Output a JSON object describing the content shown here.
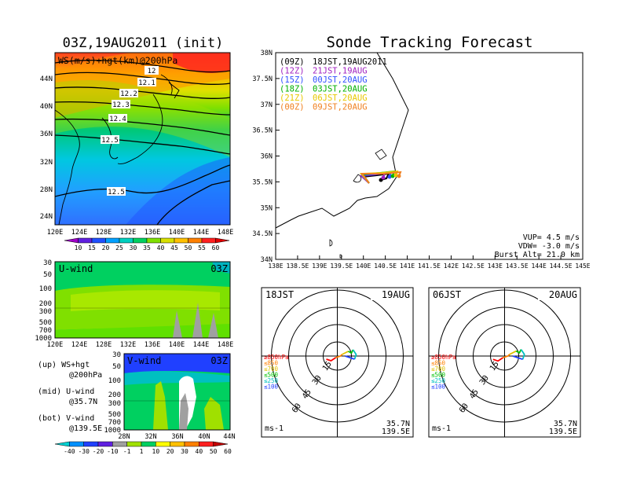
{
  "titles": {
    "left": "03Z,19AUG2011 (init)",
    "right": "Sonde Tracking Forecast"
  },
  "map_200hpa": {
    "label": "WS(m/s)+hgt(km)@200hPa",
    "lat_ticks": [
      "44N",
      "40N",
      "36N",
      "32N",
      "28N",
      "24N"
    ],
    "lon_ticks": [
      "120E",
      "124E",
      "128E",
      "132E",
      "136E",
      "140E",
      "144E",
      "148E"
    ],
    "contour_labels": [
      "12",
      "12.1",
      "12.2",
      "12.3",
      "12.4",
      "12.5",
      "12.5"
    ]
  },
  "ws_colorbar": {
    "labels": [
      "10",
      "15",
      "20",
      "25",
      "30",
      "35",
      "40",
      "45",
      "50",
      "55",
      "60"
    ]
  },
  "u_wind": {
    "label": "U-wind",
    "time": "03Z",
    "p_ticks": [
      "30",
      "50",
      "100",
      "200",
      "300",
      "500",
      "700",
      "1000"
    ],
    "lon_ticks": [
      "120E",
      "124E",
      "128E",
      "132E",
      "136E",
      "140E",
      "144E",
      "148E"
    ]
  },
  "v_wind": {
    "label": "V-wind",
    "time": "03Z",
    "p_ticks": [
      "30",
      "50",
      "100",
      "200",
      "300",
      "500",
      "700",
      "1000"
    ],
    "lat_ticks": [
      "28N",
      "32N",
      "36N",
      "40N",
      "44N"
    ]
  },
  "notes": [
    {
      "l1": "(up) WS+hgt",
      "l2": "@200hPa"
    },
    {
      "l1": "(mid) U-wind",
      "l2": "@35.7N"
    },
    {
      "l1": "(bot) V-wind",
      "l2": "@139.5E"
    }
  ],
  "uv_colorbar": {
    "labels": [
      "-40",
      "-30",
      "-20",
      "-10",
      "-1",
      "1",
      "10",
      "20",
      "30",
      "40",
      "50",
      "60"
    ]
  },
  "track_map": {
    "lat_ticks": [
      "38N",
      "37.5N",
      "37N",
      "36.5N",
      "36N",
      "35.5N",
      "35N",
      "34.5N",
      "34N"
    ],
    "lon_ticks": [
      "138E",
      "138.5E",
      "139E",
      "139.5E",
      "140E",
      "140.5E",
      "141E",
      "141.5E",
      "142E",
      "142.5E",
      "143E",
      "143.5E",
      "144E",
      "144.5E",
      "145E"
    ],
    "legend": [
      {
        "run": "(09Z)",
        "valid": "18JST,19AUG2011",
        "color": "#000000"
      },
      {
        "run": "(12Z)",
        "valid": "21JST,19AUG",
        "color": "#a020c0"
      },
      {
        "run": "(15Z)",
        "valid": "00JST,20AUG",
        "color": "#3050ff"
      },
      {
        "run": "(18Z)",
        "valid": "03JST,20AUG",
        "color": "#00b000"
      },
      {
        "run": "(21Z)",
        "valid": "06JST,20AUG",
        "color": "#e8c800"
      },
      {
        "run": "(00Z)",
        "valid": "09JST,20AUG",
        "color": "#f08020"
      }
    ],
    "params": [
      "VUP= 4.5 m/s",
      "VDW= -3.0 m/s",
      "Burst Alt= 21.0 km"
    ]
  },
  "hodo_left": {
    "time": "18JST",
    "date": "19AUG",
    "loc1": "35.7N",
    "loc2": "139.5E",
    "unit": "ms-1",
    "rings": [
      "15",
      "30",
      "45",
      "60"
    ]
  },
  "hodo_right": {
    "time": "06JST",
    "date": "20AUG",
    "loc1": "35.7N",
    "loc2": "139.5E",
    "unit": "ms-1",
    "rings": [
      "15",
      "30",
      "45",
      "60"
    ]
  },
  "hodo_levels": [
    {
      "label": "≥850hPa",
      "color": "#ff0000"
    },
    {
      "label": "≤850",
      "color": "#ff8000"
    },
    {
      "label": "≤700",
      "color": "#e0c000"
    },
    {
      "label": "≤500",
      "color": "#00c000"
    },
    {
      "label": "≤250",
      "color": "#00c0c0"
    },
    {
      "label": "≤100",
      "color": "#2040ff"
    }
  ],
  "colors": {
    "ws": [
      "#a000c8",
      "#6020e0",
      "#2050ff",
      "#00a0ff",
      "#00d0c0",
      "#00d060",
      "#80e000",
      "#d8e000",
      "#ffc000",
      "#ff8000",
      "#ff2020",
      "#e00000"
    ],
    "uv": [
      "#00d0d0",
      "#0090ff",
      "#2040ff",
      "#6020e0",
      "#a0a0a0",
      "#a0e000",
      "#00d060",
      "#ffff00",
      "#ffc000",
      "#ff8000",
      "#ff2020",
      "#c00000"
    ]
  }
}
